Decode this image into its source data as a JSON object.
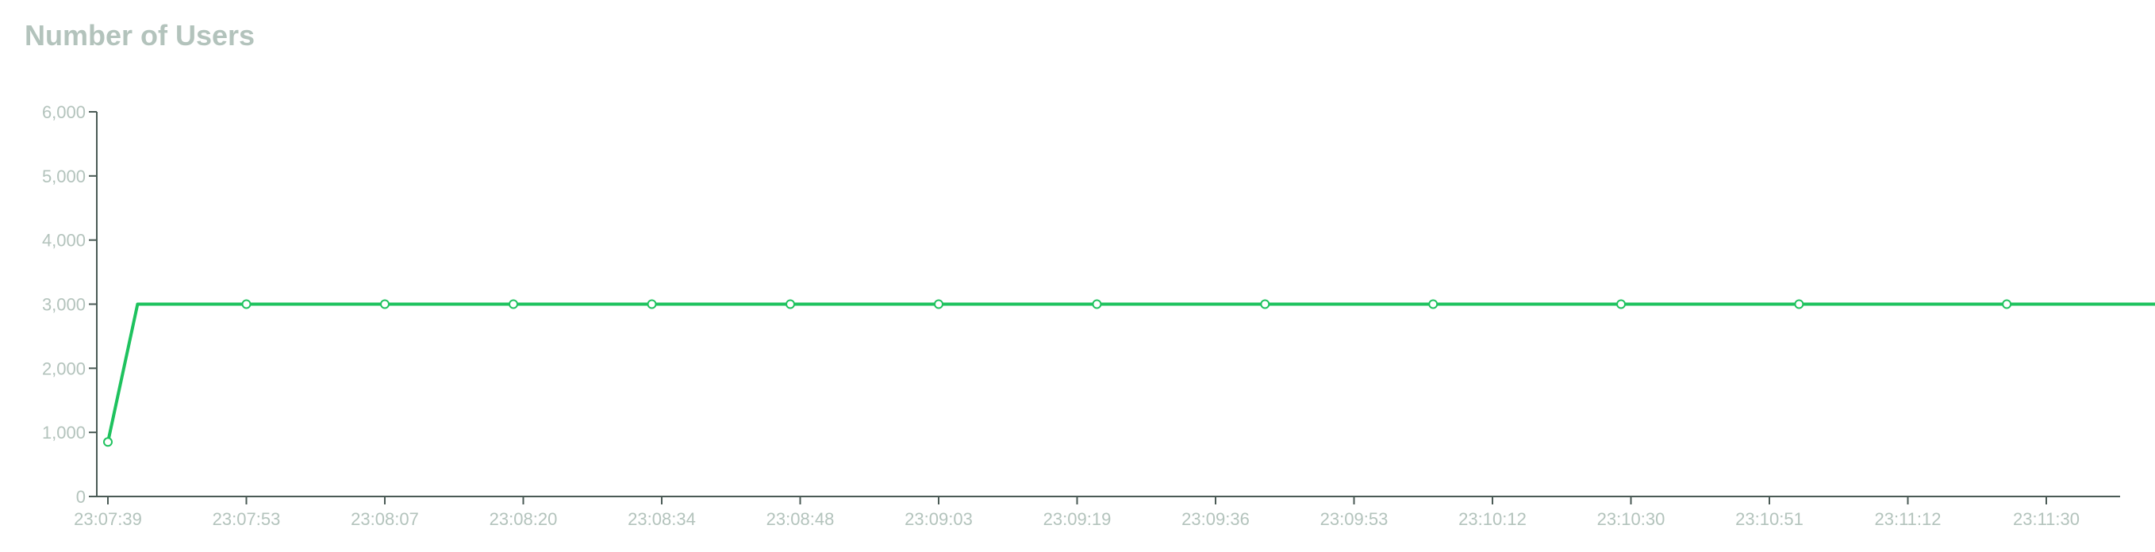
{
  "chart_data": {
    "type": "line",
    "title": "Number of Users",
    "xlabel": "",
    "ylabel": "",
    "ylim": [
      0,
      6000
    ],
    "yticks": [
      0,
      1000,
      2000,
      3000,
      4000,
      5000,
      6000
    ],
    "ytick_labels": [
      "0",
      "1,000",
      "2,000",
      "3,000",
      "4,000",
      "5,000",
      "6,000"
    ],
    "xtick_labels": [
      "23:07:39",
      "23:07:53",
      "23:08:07",
      "23:08:20",
      "23:08:34",
      "23:08:48",
      "23:09:03",
      "23:09:19",
      "23:09:36",
      "23:09:53",
      "23:10:12",
      "23:10:30",
      "23:10:51",
      "23:11:12",
      "23:11:30"
    ],
    "grid": false,
    "legend": "none",
    "series": [
      {
        "color": "#1ec25e",
        "points": [
          {
            "x": "23:07:39",
            "y": 850,
            "marker": true
          },
          {
            "x": "23:07:42",
            "y": 3000,
            "marker": false
          },
          {
            "x": "23:07:53",
            "y": 3000,
            "marker": true
          },
          {
            "x": "23:08:07",
            "y": 3000,
            "marker": true
          },
          {
            "x": "23:08:20",
            "y": 3000,
            "marker": true
          },
          {
            "x": "23:08:34",
            "y": 3000,
            "marker": true
          },
          {
            "x": "23:08:48",
            "y": 3000,
            "marker": true
          },
          {
            "x": "23:09:03",
            "y": 3000,
            "marker": true
          },
          {
            "x": "23:09:19",
            "y": 3000,
            "marker": true
          },
          {
            "x": "23:09:36",
            "y": 3000,
            "marker": true
          },
          {
            "x": "23:09:53",
            "y": 3000,
            "marker": true
          },
          {
            "x": "23:10:12",
            "y": 3000,
            "marker": true
          },
          {
            "x": "23:10:30",
            "y": 3000,
            "marker": true
          },
          {
            "x": "23:10:51",
            "y": 3000,
            "marker": true
          },
          {
            "x": "23:11:12",
            "y": 3000,
            "marker": true
          },
          {
            "x": "23:11:30",
            "y": 3000,
            "marker": true
          },
          {
            "x": "23:11:39",
            "y": 3000,
            "marker": false
          }
        ]
      }
    ]
  },
  "colors": {
    "title": "#b3c3bc",
    "tick_label": "#b3c3bc",
    "axis": "#4a5a55",
    "line": "#1ec25e",
    "marker_fill": "#ffffff"
  }
}
